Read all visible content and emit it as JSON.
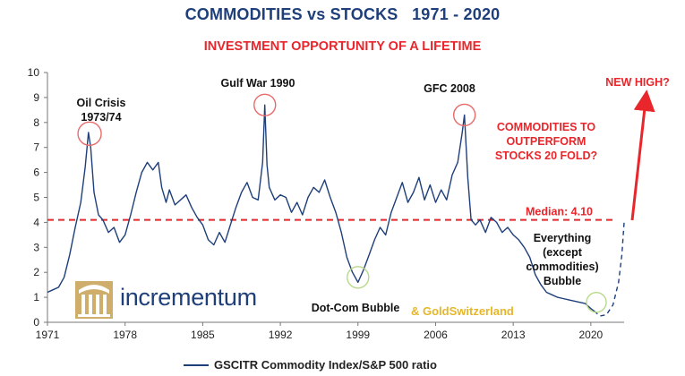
{
  "title": "COMMODITIES vs STOCKS   1971 - 2020",
  "subtitle": "INVESTMENT OPPORTUNITY OF A LIFETIME",
  "brand": {
    "name": "incrementum",
    "partner": "& GoldSwitzerland"
  },
  "colors": {
    "line": "#1f3f7a",
    "median": "#e8262b",
    "accent": "#e8262b",
    "circle_red": "#e86b6b",
    "circle_green": "#b8d98a",
    "brand": "#1f3f7a",
    "gold": "#e6b62a"
  },
  "chart_data": {
    "type": "line",
    "title": "COMMODITIES vs STOCKS   1971 - 2020",
    "subtitle": "INVESTMENT OPPORTUNITY OF A LIFETIME",
    "xlabel": "",
    "ylabel": "",
    "xlim": [
      1971,
      2023
    ],
    "ylim": [
      0,
      10
    ],
    "xticks": [
      1971,
      1978,
      1985,
      1992,
      1999,
      2006,
      2013,
      2020
    ],
    "yticks": [
      0,
      1,
      2,
      3,
      4,
      5,
      6,
      7,
      8,
      9,
      10
    ],
    "grid": false,
    "legend": "bottom-center",
    "series": [
      {
        "name": "GSCITR Commodity Index/S&P 500 ratio",
        "x": [
          1971.0,
          1971.5,
          1972.0,
          1972.5,
          1973.0,
          1973.5,
          1974.0,
          1974.4,
          1974.7,
          1974.9,
          1975.2,
          1975.6,
          1976.0,
          1976.5,
          1977.0,
          1977.5,
          1978.0,
          1978.5,
          1979.0,
          1979.5,
          1980.0,
          1980.5,
          1981.0,
          1981.3,
          1981.7,
          1982.0,
          1982.5,
          1983.0,
          1983.5,
          1984.0,
          1984.5,
          1985.0,
          1985.5,
          1986.0,
          1986.5,
          1987.0,
          1987.5,
          1988.0,
          1988.5,
          1989.0,
          1989.5,
          1990.0,
          1990.4,
          1990.6,
          1990.8,
          1991.0,
          1991.5,
          1992.0,
          1992.5,
          1993.0,
          1993.5,
          1994.0,
          1994.5,
          1995.0,
          1995.5,
          1996.0,
          1996.5,
          1997.0,
          1997.5,
          1998.0,
          1998.5,
          1999.0,
          1999.5,
          2000.0,
          2000.5,
          2001.0,
          2001.5,
          2002.0,
          2002.5,
          2003.0,
          2003.5,
          2004.0,
          2004.5,
          2005.0,
          2005.5,
          2006.0,
          2006.5,
          2007.0,
          2007.5,
          2008.0,
          2008.4,
          2008.6,
          2008.9,
          2009.2,
          2009.6,
          2010.0,
          2010.5,
          2011.0,
          2011.5,
          2012.0,
          2012.5,
          2013.0,
          2013.5,
          2014.0,
          2014.5,
          2015.0,
          2015.5,
          2016.0,
          2016.5,
          2017.0,
          2017.5,
          2018.0,
          2018.5,
          2019.0,
          2019.5,
          2020.0,
          2020.3
        ],
        "values": [
          1.2,
          1.3,
          1.4,
          1.8,
          2.7,
          3.8,
          4.8,
          6.2,
          7.6,
          7.0,
          5.2,
          4.3,
          4.1,
          3.6,
          3.8,
          3.2,
          3.5,
          4.3,
          5.2,
          6.0,
          6.4,
          6.1,
          6.4,
          5.4,
          4.8,
          5.3,
          4.7,
          4.9,
          5.1,
          4.6,
          4.2,
          3.9,
          3.3,
          3.1,
          3.6,
          3.2,
          3.9,
          4.6,
          5.2,
          5.6,
          5.0,
          4.9,
          6.4,
          8.7,
          6.3,
          5.4,
          4.9,
          5.1,
          5.0,
          4.4,
          4.8,
          4.3,
          5.0,
          5.4,
          5.2,
          5.7,
          5.0,
          4.4,
          3.6,
          2.6,
          2.0,
          1.6,
          2.1,
          2.7,
          3.3,
          3.8,
          3.5,
          4.4,
          5.0,
          5.6,
          4.8,
          5.2,
          5.8,
          4.9,
          5.5,
          4.8,
          5.3,
          4.9,
          5.9,
          6.4,
          7.6,
          8.3,
          5.8,
          4.1,
          3.9,
          4.1,
          3.6,
          4.2,
          4.0,
          3.6,
          3.8,
          3.5,
          3.3,
          3.0,
          2.6,
          1.9,
          1.5,
          1.2,
          1.1,
          1.0,
          0.95,
          0.9,
          0.85,
          0.8,
          0.75,
          0.55,
          0.45
        ]
      }
    ],
    "projection": {
      "style": "dashed",
      "x": [
        2020.3,
        2020.8,
        2021.4,
        2022.0,
        2022.5,
        2022.8,
        2023.0
      ],
      "values": [
        0.45,
        0.25,
        0.3,
        0.7,
        1.6,
        2.7,
        4.0
      ]
    },
    "median": {
      "value": 4.1,
      "label": "Median: 4.10"
    },
    "annotations": [
      {
        "lines": [
          "Oil Crisis",
          "1973/74"
        ],
        "x": 1974.8,
        "y": 7.55,
        "circle": "red"
      },
      {
        "lines": [
          "Gulf War 1990"
        ],
        "x": 1990.6,
        "y": 8.7,
        "circle": "red"
      },
      {
        "lines": [
          "GFC 2008"
        ],
        "x": 2008.6,
        "y": 8.3,
        "circle": "red"
      },
      {
        "lines": [
          "Dot-Com Bubble"
        ],
        "x": 1999.0,
        "y": 1.8,
        "circle": "green"
      },
      {
        "lines": [
          "Everything",
          "(except",
          "commodities)",
          "Bubble"
        ],
        "x": 2020.5,
        "y": 0.8,
        "circle": "green"
      },
      {
        "lines": [
          "COMMODITIES TO",
          "OUTPERFORM",
          "STOCKS 20 FOLD?"
        ],
        "accent": true
      },
      {
        "lines": [
          "NEW HIGH?"
        ],
        "accent": true
      }
    ],
    "legend_label": "GSCITR Commodity Index/S&P 500 ratio"
  }
}
